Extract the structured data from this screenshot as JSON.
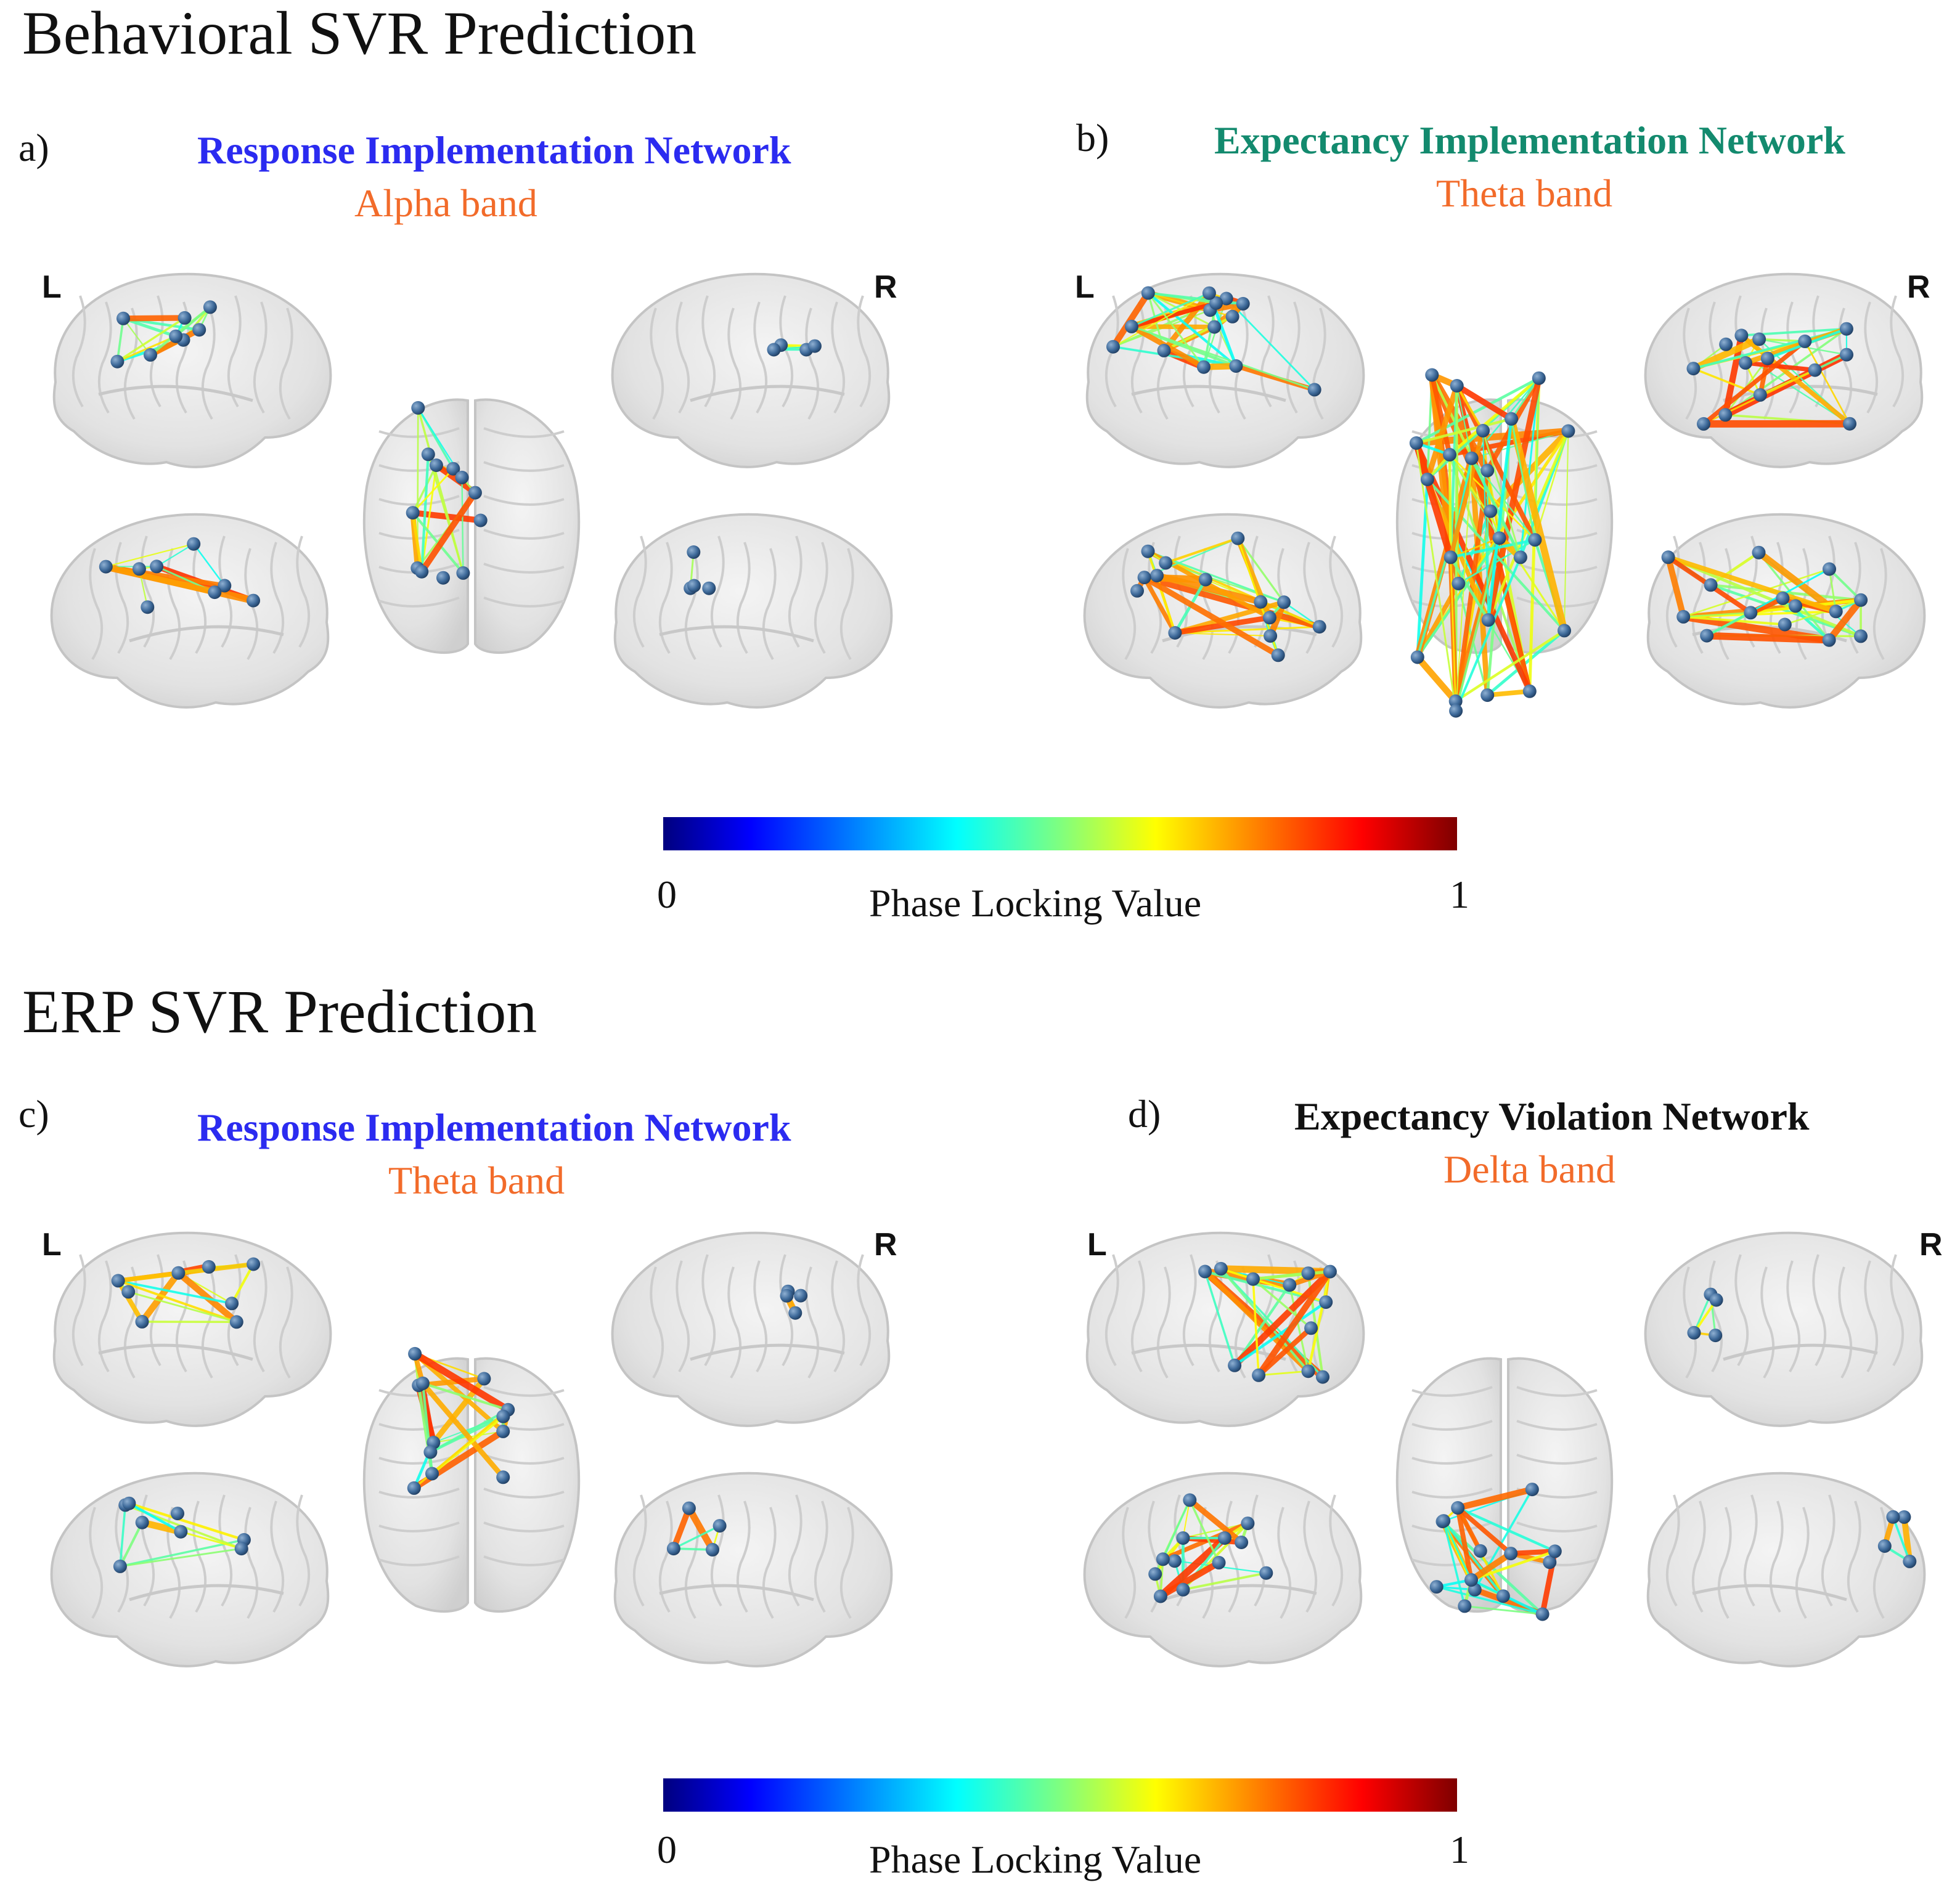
{
  "sections": {
    "behavioral": "Behavioral SVR Prediction",
    "erp": "ERP SVR Prediction"
  },
  "panels": [
    {
      "letter": "a)",
      "network": "Response Implementation Network",
      "band": "Alpha band",
      "left_label": "L",
      "right_label": "R"
    },
    {
      "letter": "b)",
      "network": "Expectancy Implementation Network",
      "band": "Theta band",
      "left_label": "L",
      "right_label": "R"
    },
    {
      "letter": "c)",
      "network": "Response Implementation Network",
      "band": "Theta band",
      "left_label": "L",
      "right_label": "R"
    },
    {
      "letter": "d)",
      "network": "Expectancy Violation Network",
      "band": "Delta band",
      "left_label": "L",
      "right_label": "R"
    }
  ],
  "colors": {
    "response_network": "#2b2bf0",
    "expectancy_implementation": "#138a6e",
    "expectancy_violation": "#111111",
    "band": "#f26b2a",
    "brain_fill": "#e6e6e6",
    "node": "#3e6a9a"
  },
  "colorbars": [
    {
      "min_label": "0",
      "max_label": "1",
      "label": "Phase Locking Value"
    },
    {
      "min_label": "0",
      "max_label": "1",
      "label": "Phase Locking Value"
    }
  ]
}
